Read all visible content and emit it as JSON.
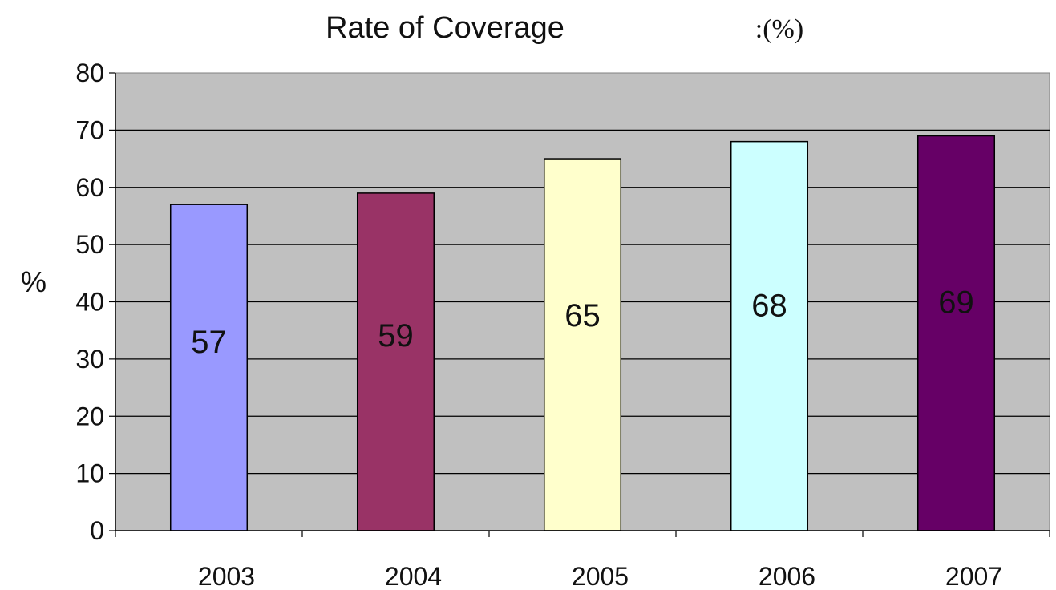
{
  "chart_data": {
    "type": "bar",
    "title": "Rate of Coverage",
    "title_suffix": ":(%)",
    "ylabel": "%",
    "xlabel": "",
    "categories": [
      "2003",
      "2004",
      "2005",
      "2006",
      "2007"
    ],
    "values": [
      57,
      59,
      65,
      68,
      69
    ],
    "data_labels": [
      "57",
      "59",
      "65",
      "68",
      "69"
    ],
    "colors": [
      "#9999ff",
      "#993366",
      "#ffffcc",
      "#ccffff",
      "#660066"
    ],
    "ylim": [
      0,
      80
    ],
    "yticks": [
      0,
      10,
      20,
      30,
      40,
      50,
      60,
      70,
      80
    ],
    "ytick_labels": [
      "0",
      "10",
      "20",
      "30",
      "40",
      "50",
      "60",
      "70",
      "80"
    ],
    "grid": true,
    "plot_background": "#c0c0c0",
    "legend": "none"
  }
}
